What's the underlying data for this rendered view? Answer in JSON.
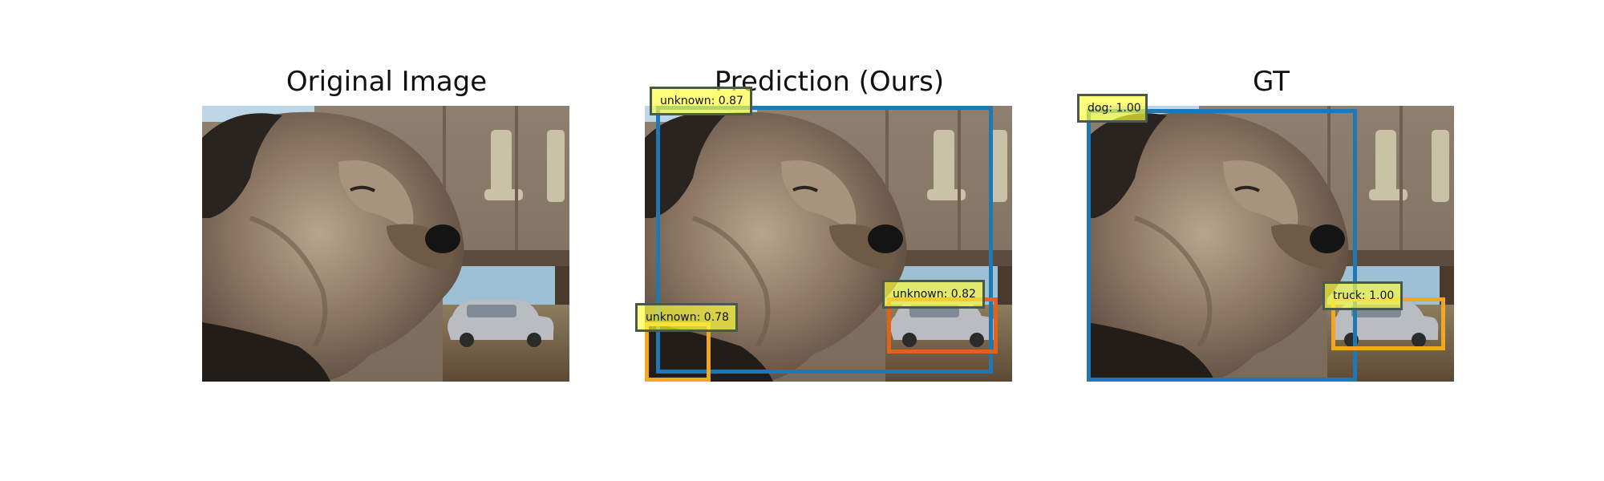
{
  "panels": [
    {
      "title": "Original Image"
    },
    {
      "title": "Prediction (Ours)"
    },
    {
      "title": "GT"
    }
  ],
  "prediction": {
    "detections": [
      {
        "label": "unknown: 0.87",
        "color": "#1f77b4"
      },
      {
        "label": "unknown: 0.82",
        "color": "#e0621b"
      },
      {
        "label": "unknown: 0.78",
        "color": "#f0a820"
      }
    ]
  },
  "ground_truth": {
    "detections": [
      {
        "label": "dog: 1.00",
        "color": "#1f77b4"
      },
      {
        "label": "truck: 1.00",
        "color": "#f0a820"
      }
    ]
  },
  "colors": {
    "pred_dog_box": "#1f77b4",
    "pred_car_box": "#e0621b",
    "pred_collar_box": "#f0a820",
    "label_fill": "#ffff3c",
    "label_border": "#4a5a4a"
  }
}
